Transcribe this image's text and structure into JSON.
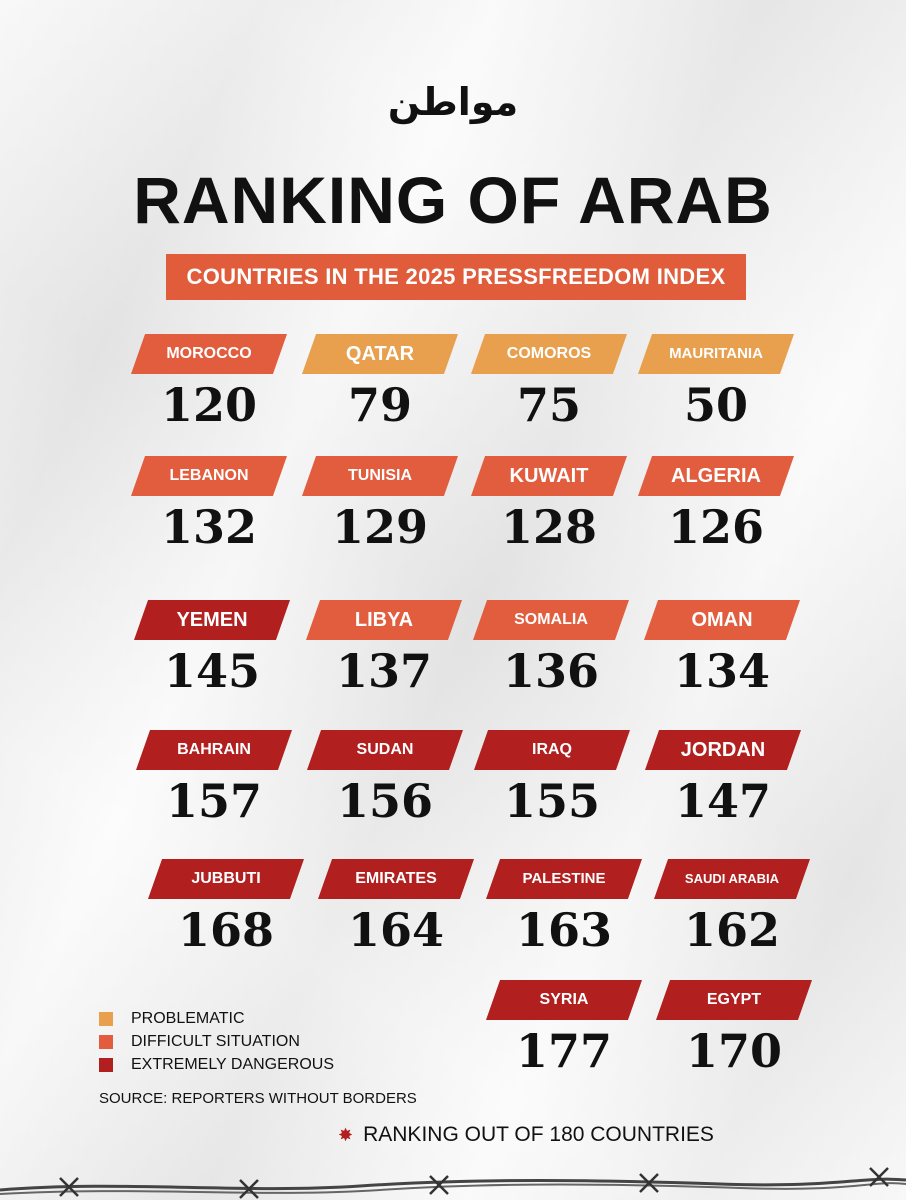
{
  "logo": "مواطن",
  "title": "RANKING OF ARAB",
  "subtitle": "COUNTRIES IN THE 2025 PRESSFREEDOM INDEX",
  "colors": {
    "problematic": "#e8a04f",
    "difficult": "#e25d3d",
    "extreme": "#b11f1f"
  },
  "countries": [
    {
      "name": "MOROCCO",
      "rank": "120",
      "category": "difficult"
    },
    {
      "name": "QATAR",
      "rank": "79",
      "category": "problematic"
    },
    {
      "name": "COMOROS",
      "rank": "75",
      "category": "problematic"
    },
    {
      "name": "MAURITANIA",
      "rank": "50",
      "category": "problematic"
    },
    {
      "name": "LEBANON",
      "rank": "132",
      "category": "difficult"
    },
    {
      "name": "TUNISIA",
      "rank": "129",
      "category": "difficult"
    },
    {
      "name": "KUWAIT",
      "rank": "128",
      "category": "difficult"
    },
    {
      "name": "ALGERIA",
      "rank": "126",
      "category": "difficult"
    },
    {
      "name": "YEMEN",
      "rank": "145",
      "category": "extreme"
    },
    {
      "name": "LIBYA",
      "rank": "137",
      "category": "difficult"
    },
    {
      "name": "SOMALIA",
      "rank": "136",
      "category": "difficult"
    },
    {
      "name": "OMAN",
      "rank": "134",
      "category": "difficult"
    },
    {
      "name": "BAHRAIN",
      "rank": "157",
      "category": "extreme"
    },
    {
      "name": "SUDAN",
      "rank": "156",
      "category": "extreme"
    },
    {
      "name": "IRAQ",
      "rank": "155",
      "category": "extreme"
    },
    {
      "name": "JORDAN",
      "rank": "147",
      "category": "extreme"
    },
    {
      "name": "JUBBUTI",
      "rank": "168",
      "category": "extreme"
    },
    {
      "name": "EMIRATES",
      "rank": "164",
      "category": "extreme"
    },
    {
      "name": "PALESTINE",
      "rank": "163",
      "category": "extreme"
    },
    {
      "name": "SAUDI ARABIA",
      "rank": "162",
      "category": "extreme"
    },
    {
      "name": "SYRIA",
      "rank": "177",
      "category": "extreme"
    },
    {
      "name": "EGYPT",
      "rank": "170",
      "category": "extreme"
    }
  ],
  "legend": {
    "problematic": "PROBLEMATIC",
    "difficult": "DIFFICULT SITUATION",
    "extreme": "EXTREMELY DANGEROUS"
  },
  "source": "SOURCE: REPORTERS WITHOUT BORDERS",
  "note": "RANKING OUT OF 180 COUNTRIES"
}
